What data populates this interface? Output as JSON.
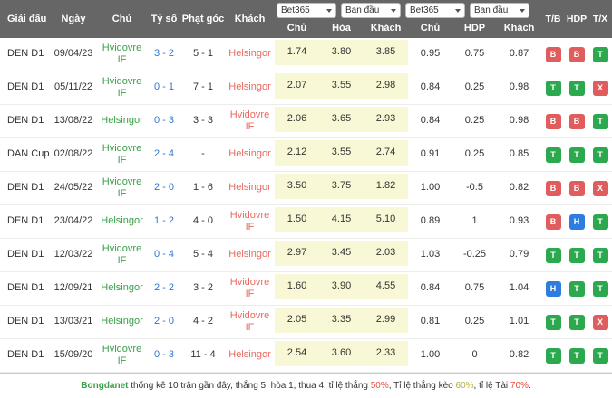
{
  "header": {
    "columns": [
      "Giải đấu",
      "Ngày",
      "Chủ",
      "Tỷ số",
      "Phạt góc",
      "Khách"
    ],
    "selects": [
      "Bet365",
      "Ban đầu",
      "Bet365",
      "Ban đầu"
    ],
    "odds_subcolumns": [
      "Chủ",
      "Hòa",
      "Khách"
    ],
    "hdp_subcolumns": [
      "Chủ",
      "HDP",
      "Khách"
    ],
    "result_columns": [
      "T/B",
      "HDP",
      "T/X"
    ]
  },
  "colors": {
    "header_bg": "#666666",
    "home_team": "#3aa049",
    "away_team": "#e9695f",
    "score_link": "#2e77d0",
    "odds_bg": "#f8f8d6",
    "badge_red": "#e15c5c",
    "badge_green": "#2ca84f",
    "badge_blue": "#2f7ce0",
    "pct_red": "#e74c3c",
    "pct_yellow": "#b5ae3c",
    "brand_green": "#3aa049"
  },
  "rows": [
    {
      "league": "DEN D1",
      "date": "09/04/23",
      "home": "Hvidovre IF",
      "score": "3 - 2",
      "corner": "5 - 1",
      "away": "Helsingor",
      "odds": [
        "1.74",
        "3.80",
        "3.85"
      ],
      "hdp": [
        "0.95",
        "0.75",
        "0.87"
      ],
      "badges": [
        {
          "label": "B",
          "color": "badge_red"
        },
        {
          "label": "B",
          "color": "badge_red"
        },
        {
          "label": "T",
          "color": "badge_green"
        }
      ]
    },
    {
      "league": "DEN D1",
      "date": "05/11/22",
      "home": "Hvidovre IF",
      "score": "0 - 1",
      "corner": "7 - 1",
      "away": "Helsingor",
      "odds": [
        "2.07",
        "3.55",
        "2.98"
      ],
      "hdp": [
        "0.84",
        "0.25",
        "0.98"
      ],
      "badges": [
        {
          "label": "T",
          "color": "badge_green"
        },
        {
          "label": "T",
          "color": "badge_green"
        },
        {
          "label": "X",
          "color": "badge_red"
        }
      ]
    },
    {
      "league": "DEN D1",
      "date": "13/08/22",
      "home": "Helsingor",
      "score": "0 - 3",
      "corner": "3 - 3",
      "away": "Hvidovre IF",
      "odds": [
        "2.06",
        "3.65",
        "2.93"
      ],
      "hdp": [
        "0.84",
        "0.25",
        "0.98"
      ],
      "badges": [
        {
          "label": "B",
          "color": "badge_red"
        },
        {
          "label": "B",
          "color": "badge_red"
        },
        {
          "label": "T",
          "color": "badge_green"
        }
      ]
    },
    {
      "league": "DAN Cup",
      "date": "02/08/22",
      "home": "Hvidovre IF",
      "score": "2 - 4",
      "corner": "-",
      "away": "Helsingor",
      "odds": [
        "2.12",
        "3.55",
        "2.74"
      ],
      "hdp": [
        "0.91",
        "0.25",
        "0.85"
      ],
      "badges": [
        {
          "label": "T",
          "color": "badge_green"
        },
        {
          "label": "T",
          "color": "badge_green"
        },
        {
          "label": "T",
          "color": "badge_green"
        }
      ]
    },
    {
      "league": "DEN D1",
      "date": "24/05/22",
      "home": "Hvidovre IF",
      "score": "2 - 0",
      "corner": "1 - 6",
      "away": "Helsingor",
      "odds": [
        "3.50",
        "3.75",
        "1.82"
      ],
      "hdp": [
        "1.00",
        "-0.5",
        "0.82"
      ],
      "badges": [
        {
          "label": "B",
          "color": "badge_red"
        },
        {
          "label": "B",
          "color": "badge_red"
        },
        {
          "label": "X",
          "color": "badge_red"
        }
      ]
    },
    {
      "league": "DEN D1",
      "date": "23/04/22",
      "home": "Helsingor",
      "score": "1 - 2",
      "corner": "4 - 0",
      "away": "Hvidovre IF",
      "odds": [
        "1.50",
        "4.15",
        "5.10"
      ],
      "hdp": [
        "0.89",
        "1",
        "0.93"
      ],
      "badges": [
        {
          "label": "B",
          "color": "badge_red"
        },
        {
          "label": "H",
          "color": "badge_blue"
        },
        {
          "label": "T",
          "color": "badge_green"
        }
      ]
    },
    {
      "league": "DEN D1",
      "date": "12/03/22",
      "home": "Hvidovre IF",
      "score": "0 - 4",
      "corner": "5 - 4",
      "away": "Helsingor",
      "odds": [
        "2.97",
        "3.45",
        "2.03"
      ],
      "hdp": [
        "1.03",
        "-0.25",
        "0.79"
      ],
      "badges": [
        {
          "label": "T",
          "color": "badge_green"
        },
        {
          "label": "T",
          "color": "badge_green"
        },
        {
          "label": "T",
          "color": "badge_green"
        }
      ]
    },
    {
      "league": "DEN D1",
      "date": "12/09/21",
      "home": "Helsingor",
      "score": "2 - 2",
      "corner": "3 - 2",
      "away": "Hvidovre IF",
      "odds": [
        "1.60",
        "3.90",
        "4.55"
      ],
      "hdp": [
        "0.84",
        "0.75",
        "1.04"
      ],
      "badges": [
        {
          "label": "H",
          "color": "badge_blue"
        },
        {
          "label": "T",
          "color": "badge_green"
        },
        {
          "label": "T",
          "color": "badge_green"
        }
      ]
    },
    {
      "league": "DEN D1",
      "date": "13/03/21",
      "home": "Helsingor",
      "score": "2 - 0",
      "corner": "4 - 2",
      "away": "Hvidovre IF",
      "odds": [
        "2.05",
        "3.35",
        "2.99"
      ],
      "hdp": [
        "0.81",
        "0.25",
        "1.01"
      ],
      "badges": [
        {
          "label": "T",
          "color": "badge_green"
        },
        {
          "label": "T",
          "color": "badge_green"
        },
        {
          "label": "X",
          "color": "badge_red"
        }
      ]
    },
    {
      "league": "DEN D1",
      "date": "15/09/20",
      "home": "Hvidovre IF",
      "score": "0 - 3",
      "corner": "11 - 4",
      "away": "Helsingor",
      "odds": [
        "2.54",
        "3.60",
        "2.33"
      ],
      "hdp": [
        "1.00",
        "0",
        "0.82"
      ],
      "badges": [
        {
          "label": "T",
          "color": "badge_green"
        },
        {
          "label": "T",
          "color": "badge_green"
        },
        {
          "label": "T",
          "color": "badge_green"
        }
      ]
    }
  ],
  "footer": {
    "brand": "Bongdanet",
    "text1": " thống kê 10 trận gần đây, thắng 5, hòa 1, thua 4. tỉ lệ thắng ",
    "win_pct": "50%",
    "text2": ", Tỉ lệ thắng kèo ",
    "handicap_pct": "60%",
    "text3": ", tỉ lệ Tài ",
    "over_pct": "70%",
    "text4": "."
  }
}
